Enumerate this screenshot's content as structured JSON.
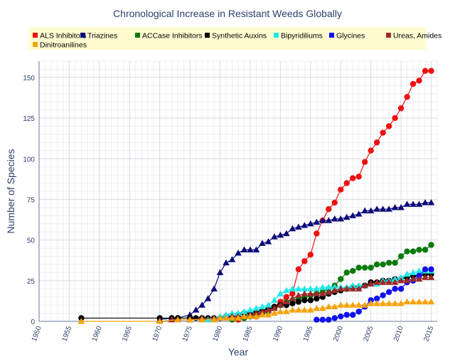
{
  "chart_data": {
    "type": "line",
    "title": "Chronological Increase in Resistant Weeds Globally",
    "xlabel": "Year",
    "ylabel": "Number of Species",
    "xlim": [
      1950,
      2016
    ],
    "ylim": [
      0,
      160
    ],
    "xticks": [
      1950,
      1955,
      1960,
      1965,
      1970,
      1975,
      1980,
      1985,
      1990,
      1995,
      2000,
      2005,
      2010,
      2015
    ],
    "yticks": [
      0,
      25,
      50,
      75,
      100,
      125,
      150
    ],
    "grid": true,
    "legend_position": "top",
    "legend_background": "#fffbd0",
    "series": [
      {
        "name": "ALS Inhibitors",
        "color": "#ee1111",
        "marker": "circle",
        "x": [
          1983,
          1984,
          1985,
          1986,
          1987,
          1988,
          1989,
          1990,
          1991,
          1992,
          1993,
          1994,
          1995,
          1996,
          1997,
          1998,
          1999,
          2000,
          2001,
          2002,
          2003,
          2004,
          2005,
          2006,
          2007,
          2008,
          2009,
          2010,
          2011,
          2012,
          2013,
          2014,
          2015
        ],
        "y": [
          1,
          2,
          3,
          3,
          5,
          7,
          9,
          12,
          15,
          17,
          32,
          37,
          41,
          54,
          62,
          69,
          73,
          81,
          85,
          88,
          89,
          98,
          105,
          110,
          116,
          120,
          125,
          131,
          138,
          146,
          148,
          154,
          154
        ]
      },
      {
        "name": "Triazines",
        "color": "#0b0b7a",
        "marker": "triangle",
        "x": [
          1970,
          1972,
          1973,
          1975,
          1976,
          1977,
          1978,
          1979,
          1980,
          1981,
          1982,
          1983,
          1984,
          1985,
          1986,
          1987,
          1988,
          1989,
          1990,
          1991,
          1992,
          1993,
          1994,
          1995,
          1996,
          1997,
          1998,
          1999,
          2000,
          2001,
          2002,
          2003,
          2004,
          2005,
          2006,
          2007,
          2008,
          2009,
          2010,
          2011,
          2012,
          2013,
          2014,
          2015
        ],
        "y": [
          1,
          2,
          2,
          4,
          7,
          10,
          14,
          20,
          30,
          36,
          38,
          42,
          44,
          44,
          44,
          48,
          49,
          52,
          53,
          54,
          57,
          58,
          59,
          60,
          61,
          62,
          62,
          63,
          63,
          64,
          65,
          66,
          68,
          68,
          69,
          69,
          69,
          70,
          70,
          72,
          72,
          72,
          73,
          73
        ]
      },
      {
        "name": "ACCase Inhibitors",
        "color": "#0a7a0a",
        "marker": "circle",
        "x": [
          1982,
          1983,
          1984,
          1985,
          1986,
          1987,
          1988,
          1989,
          1990,
          1991,
          1992,
          1993,
          1994,
          1995,
          1996,
          1997,
          1998,
          1999,
          2000,
          2001,
          2002,
          2003,
          2004,
          2005,
          2006,
          2007,
          2008,
          2009,
          2010,
          2011,
          2012,
          2013,
          2014,
          2015
        ],
        "y": [
          1,
          2,
          2,
          3,
          4,
          5,
          6,
          8,
          10,
          12,
          13,
          14,
          15,
          16,
          17,
          18,
          20,
          22,
          26,
          30,
          31,
          33,
          33,
          33,
          35,
          35,
          36,
          36,
          40,
          43,
          43,
          44,
          44,
          47
        ]
      },
      {
        "name": "Synthetic Auxins",
        "color": "#000000",
        "marker": "circle",
        "x": [
          1957,
          1970,
          1972,
          1973,
          1975,
          1976,
          1977,
          1978,
          1979,
          1980,
          1981,
          1982,
          1983,
          1984,
          1985,
          1986,
          1987,
          1988,
          1989,
          1990,
          1991,
          1992,
          1993,
          1994,
          1995,
          1996,
          1997,
          1998,
          1999,
          2000,
          2001,
          2002,
          2003,
          2004,
          2005,
          2006,
          2007,
          2008,
          2009,
          2010,
          2011,
          2012,
          2013,
          2014,
          2015
        ],
        "y": [
          2,
          2,
          2,
          2,
          2,
          2,
          2,
          2,
          2,
          2,
          3,
          3,
          4,
          5,
          5,
          6,
          7,
          8,
          9,
          10,
          10,
          11,
          12,
          13,
          13,
          14,
          15,
          17,
          18,
          19,
          20,
          21,
          21,
          22,
          24,
          24,
          25,
          25,
          26,
          26,
          27,
          28,
          28,
          29,
          29
        ]
      },
      {
        "name": "Bipyridiliums",
        "color": "#1ee8e8",
        "marker": "triangle",
        "x": [
          1975,
          1977,
          1978,
          1979,
          1980,
          1981,
          1982,
          1983,
          1984,
          1985,
          1986,
          1987,
          1988,
          1989,
          1990,
          1991,
          1992,
          1993,
          1994,
          1995,
          1996,
          1997,
          1998,
          1999,
          2000,
          2001,
          2002,
          2003,
          2004,
          2005,
          2006,
          2007,
          2008,
          2009,
          2010,
          2011,
          2012,
          2013,
          2014,
          2015
        ],
        "y": [
          1,
          1,
          1,
          2,
          3,
          4,
          5,
          5,
          6,
          7,
          8,
          9,
          10,
          13,
          17,
          19,
          20,
          20,
          20,
          20,
          20,
          21,
          21,
          21,
          21,
          21,
          22,
          22,
          22,
          23,
          23,
          25,
          25,
          26,
          27,
          29,
          30,
          31,
          31,
          31
        ]
      },
      {
        "name": "Glycines",
        "color": "#1111ee",
        "marker": "circle",
        "x": [
          1996,
          1997,
          1998,
          1999,
          2000,
          2001,
          2002,
          2003,
          2004,
          2005,
          2006,
          2007,
          2008,
          2009,
          2010,
          2011,
          2012,
          2013,
          2014,
          2015
        ],
        "y": [
          1,
          1,
          1,
          2,
          3,
          4,
          4,
          6,
          9,
          13,
          14,
          16,
          18,
          20,
          20,
          24,
          25,
          28,
          32,
          32
        ]
      },
      {
        "name": "Ureas, Amides",
        "color": "#9b2a2a",
        "marker": "triangle",
        "x": [
          1972,
          1975,
          1977,
          1979,
          1980,
          1981,
          1982,
          1983,
          1984,
          1985,
          1986,
          1987,
          1988,
          1989,
          1990,
          1991,
          1992,
          1993,
          1994,
          1995,
          1996,
          1997,
          1998,
          1999,
          2000,
          2001,
          2002,
          2003,
          2004,
          2005,
          2006,
          2007,
          2008,
          2009,
          2010,
          2011,
          2012,
          2013,
          2014,
          2015
        ],
        "y": [
          1,
          1,
          2,
          2,
          2,
          2,
          3,
          3,
          3,
          4,
          5,
          6,
          7,
          8,
          10,
          12,
          14,
          16,
          17,
          17,
          17,
          17,
          18,
          19,
          20,
          20,
          20,
          20,
          22,
          23,
          24,
          24,
          24,
          24,
          25,
          25,
          26,
          26,
          27,
          27
        ]
      },
      {
        "name": "Dinitroanilines",
        "color": "#f5a30c",
        "marker": "triangle",
        "x": [
          1957,
          1970,
          1973,
          1975,
          1977,
          1979,
          1980,
          1981,
          1982,
          1983,
          1984,
          1985,
          1986,
          1987,
          1988,
          1989,
          1990,
          1991,
          1992,
          1993,
          1994,
          1995,
          1996,
          1997,
          1998,
          1999,
          2000,
          2001,
          2002,
          2003,
          2004,
          2005,
          2006,
          2007,
          2008,
          2009,
          2010,
          2011,
          2012,
          2013,
          2014,
          2015
        ],
        "y": [
          0,
          0,
          1,
          1,
          1,
          1,
          2,
          2,
          2,
          2,
          3,
          3,
          3,
          4,
          4,
          5,
          6,
          6,
          7,
          7,
          7,
          7,
          8,
          8,
          9,
          9,
          10,
          10,
          10,
          10,
          10,
          11,
          11,
          11,
          11,
          11,
          11,
          12,
          12,
          12,
          12,
          12
        ]
      }
    ]
  }
}
